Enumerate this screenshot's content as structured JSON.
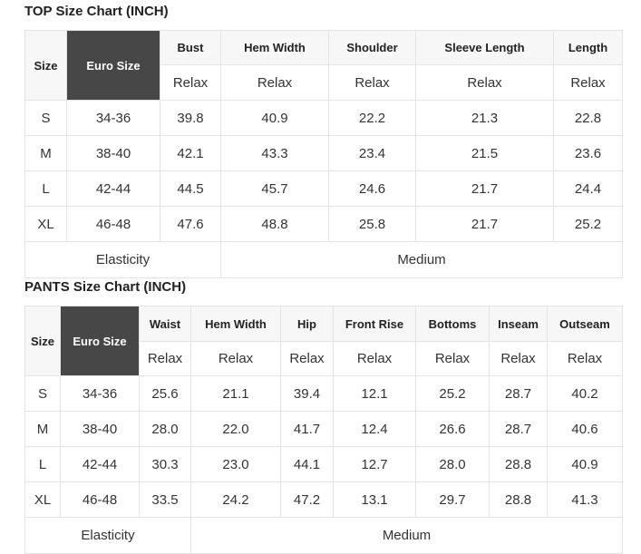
{
  "top": {
    "title": "TOP Size Chart (INCH)",
    "size_header": "Size",
    "euro_header": "Euro Size",
    "columns": [
      "Bust",
      "Hem Width",
      "Shoulder",
      "Sleeve Length",
      "Length"
    ],
    "fit_label": "Relax",
    "rows": [
      {
        "size": "S",
        "euro": "34-36",
        "values": [
          "39.8",
          "40.9",
          "22.2",
          "21.3",
          "22.8"
        ]
      },
      {
        "size": "M",
        "euro": "38-40",
        "values": [
          "42.1",
          "43.3",
          "23.4",
          "21.5",
          "23.6"
        ]
      },
      {
        "size": "L",
        "euro": "42-44",
        "values": [
          "44.5",
          "45.7",
          "24.6",
          "21.7",
          "24.4"
        ]
      },
      {
        "size": "XL",
        "euro": "46-48",
        "values": [
          "47.6",
          "48.8",
          "25.8",
          "21.7",
          "25.2"
        ]
      }
    ],
    "elasticity_label": "Elasticity",
    "elasticity_value": "Medium"
  },
  "pants": {
    "title": "PANTS Size Chart (INCH)",
    "size_header": "Size",
    "euro_header": "Euro Size",
    "columns": [
      "Waist",
      "Hem Width",
      "Hip",
      "Front Rise",
      "Bottoms",
      "Inseam",
      "Outseam"
    ],
    "fit_label": "Relax",
    "rows": [
      {
        "size": "S",
        "euro": "34-36",
        "values": [
          "25.6",
          "21.1",
          "39.4",
          "12.1",
          "25.2",
          "28.7",
          "40.2"
        ]
      },
      {
        "size": "M",
        "euro": "38-40",
        "values": [
          "28.0",
          "22.0",
          "41.7",
          "12.4",
          "26.6",
          "28.7",
          "40.6"
        ]
      },
      {
        "size": "L",
        "euro": "42-44",
        "values": [
          "30.3",
          "23.0",
          "44.1",
          "12.7",
          "28.0",
          "28.8",
          "40.9"
        ]
      },
      {
        "size": "XL",
        "euro": "46-48",
        "values": [
          "33.5",
          "24.2",
          "47.2",
          "13.1",
          "29.7",
          "28.8",
          "41.3"
        ]
      }
    ],
    "elasticity_label": "Elasticity",
    "elasticity_value": "Medium"
  }
}
